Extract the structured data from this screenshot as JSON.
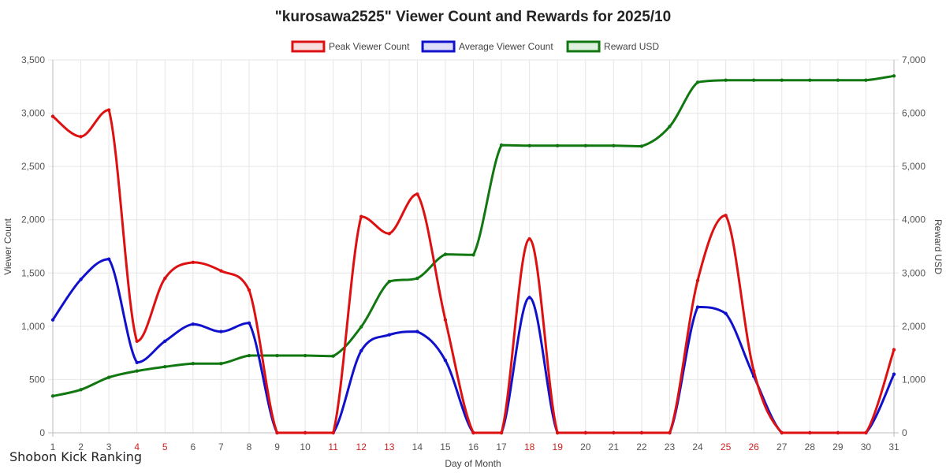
{
  "chart_data": {
    "type": "line",
    "title": "\"kurosawa2525\" Viewer Count and Rewards for 2025/10",
    "xlabel": "Day of Month",
    "ylabel_left": "Viewer Count",
    "ylabel_right": "Reward USD",
    "x": [
      "1",
      "2",
      "3",
      "4",
      "5",
      "6",
      "7",
      "8",
      "9",
      "10",
      "11",
      "12",
      "13",
      "14",
      "15",
      "16",
      "17",
      "18",
      "19",
      "20",
      "21",
      "22",
      "23",
      "24",
      "25",
      "26",
      "27",
      "28",
      "29",
      "30",
      "31"
    ],
    "highlighted_days": [
      "4",
      "5",
      "11",
      "12",
      "13",
      "18",
      "19",
      "25",
      "26"
    ],
    "highlight_color": "#cc2222",
    "normal_tick_color": "#555555",
    "y_left_lim": [
      0,
      3500
    ],
    "y_left_ticks": [
      "0",
      "500",
      "1,000",
      "1,500",
      "2,000",
      "2,500",
      "3,000",
      "3,500"
    ],
    "y_right_lim": [
      0,
      7000
    ],
    "y_right_ticks": [
      "0",
      "1,000",
      "2,000",
      "3,000",
      "4,000",
      "5,000",
      "6,000",
      "7,000"
    ],
    "grid": true,
    "legend_position": "top-center",
    "series": [
      {
        "name": "Peak Viewer Count",
        "axis": "left",
        "color": "#dd1111",
        "fill": "#f8dede",
        "values": [
          2970,
          2780,
          3030,
          860,
          1450,
          1600,
          1520,
          1340,
          0,
          0,
          0,
          2030,
          1870,
          2240,
          1060,
          0,
          0,
          1820,
          0,
          0,
          0,
          0,
          0,
          1430,
          2040,
          580,
          0,
          0,
          0,
          0,
          780
        ]
      },
      {
        "name": "Average Viewer Count",
        "axis": "left",
        "color": "#1111cc",
        "fill": "#dedef8",
        "values": [
          1060,
          1440,
          1630,
          660,
          860,
          1020,
          950,
          1030,
          0,
          0,
          0,
          770,
          920,
          950,
          680,
          0,
          0,
          1270,
          0,
          0,
          0,
          0,
          0,
          1180,
          1120,
          530,
          0,
          0,
          0,
          0,
          550
        ]
      },
      {
        "name": "Reward USD",
        "axis": "right",
        "color": "#117711",
        "fill": "#dff0df",
        "values": [
          690,
          810,
          1040,
          1160,
          1240,
          1300,
          1300,
          1450,
          1450,
          1450,
          1440,
          1990,
          2840,
          2900,
          3350,
          3340,
          5400,
          5390,
          5390,
          5390,
          5390,
          5380,
          5750,
          6580,
          6620,
          6620,
          6620,
          6620,
          6620,
          6620,
          6700
        ]
      }
    ]
  },
  "watermark": "Shobon Kick Ranking"
}
